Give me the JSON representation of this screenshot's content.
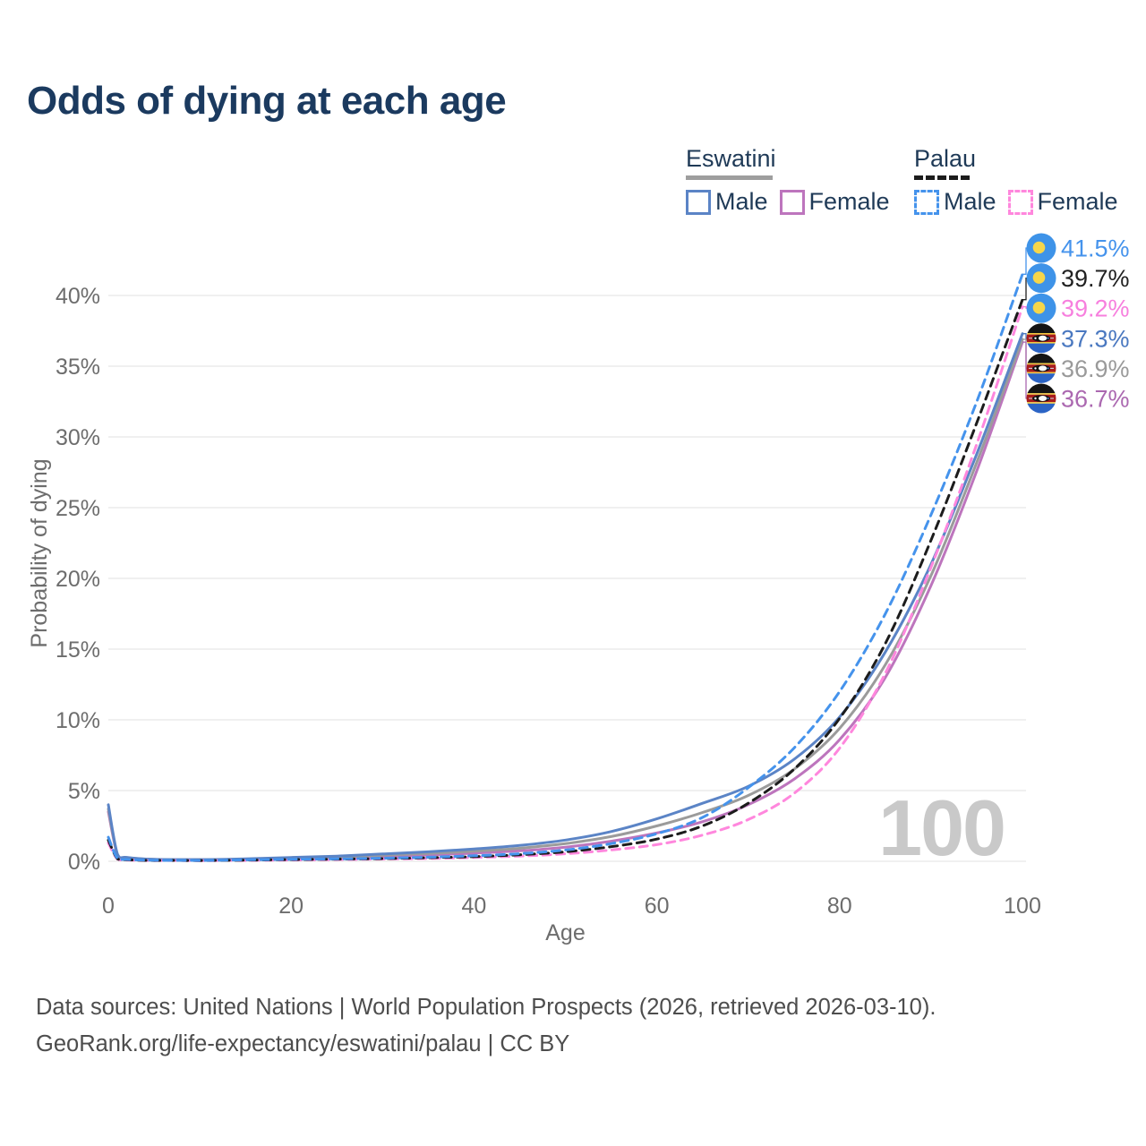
{
  "title": "Odds of dying at each age",
  "legend": {
    "groups": [
      {
        "name": "Eswatini",
        "style": "solid",
        "items": [
          {
            "label": "Male",
            "color": "#5b84c6"
          },
          {
            "label": "Female",
            "color": "#bd75bd"
          }
        ]
      },
      {
        "name": "Palau",
        "style": "dashed",
        "items": [
          {
            "label": "Male",
            "color": "#4593ec"
          },
          {
            "label": "Female",
            "color": "#ff87dd"
          }
        ]
      }
    ]
  },
  "chart_data": {
    "type": "line",
    "title": "Odds of dying at each age",
    "xlabel": "Age",
    "ylabel": "Probability of dying",
    "x_ticks": [
      0,
      20,
      40,
      60,
      80,
      100
    ],
    "y_tick_labels": [
      "0%",
      "5%",
      "10%",
      "15%",
      "20%",
      "25%",
      "30%",
      "35%",
      "40%"
    ],
    "y_tick_values": [
      0,
      5,
      10,
      15,
      20,
      25,
      30,
      35,
      40
    ],
    "xlim": [
      0,
      100
    ],
    "ylim": [
      0,
      43
    ],
    "grid": "horizontal",
    "watermark": "100",
    "ages": [
      0,
      1,
      2,
      5,
      10,
      15,
      20,
      25,
      30,
      35,
      40,
      45,
      50,
      55,
      60,
      65,
      70,
      75,
      80,
      85,
      90,
      95,
      100
    ],
    "series": [
      {
        "name": "Eswatini Female",
        "country": "Eswatini",
        "sex": "Female",
        "color": "#bd75bd",
        "dash": false,
        "end_value": 36.7,
        "values": [
          3.5,
          0.45,
          0.24,
          0.12,
          0.1,
          0.12,
          0.17,
          0.24,
          0.34,
          0.44,
          0.57,
          0.74,
          1.0,
          1.42,
          2.0,
          2.8,
          4.0,
          5.8,
          8.6,
          13.0,
          19.5,
          27.6,
          36.7
        ]
      },
      {
        "name": "Eswatini",
        "country": "Eswatini",
        "sex": "Both",
        "color": "#9b9b9b",
        "dash": false,
        "end_value": 36.9,
        "values": [
          3.7,
          0.48,
          0.26,
          0.13,
          0.11,
          0.14,
          0.22,
          0.3,
          0.43,
          0.55,
          0.71,
          0.92,
          1.25,
          1.75,
          2.5,
          3.45,
          4.65,
          6.5,
          9.4,
          13.9,
          20.2,
          28.2,
          36.9
        ]
      },
      {
        "name": "Eswatini Male",
        "country": "Eswatini",
        "sex": "Male",
        "color": "#5b84c6",
        "dash": false,
        "end_value": 37.3,
        "values": [
          4.0,
          0.5,
          0.28,
          0.14,
          0.12,
          0.17,
          0.27,
          0.37,
          0.52,
          0.67,
          0.87,
          1.12,
          1.5,
          2.1,
          3.0,
          4.1,
          5.3,
          7.2,
          10.2,
          14.8,
          21.0,
          28.8,
          37.3
        ]
      },
      {
        "name": "Palau Female",
        "country": "Palau",
        "sex": "Female",
        "color": "#ff87dd",
        "dash": true,
        "end_value": 39.2,
        "values": [
          1.3,
          0.15,
          0.09,
          0.05,
          0.04,
          0.06,
          0.09,
          0.12,
          0.16,
          0.2,
          0.27,
          0.37,
          0.53,
          0.8,
          1.18,
          1.85,
          2.95,
          4.8,
          8.0,
          13.3,
          20.8,
          29.5,
          39.2
        ]
      },
      {
        "name": "Palau",
        "country": "Palau",
        "sex": "Both",
        "color": "#1c1c1c",
        "dash": true,
        "end_value": 39.7,
        "values": [
          1.5,
          0.18,
          0.11,
          0.06,
          0.05,
          0.08,
          0.12,
          0.15,
          0.19,
          0.25,
          0.33,
          0.46,
          0.67,
          1.03,
          1.57,
          2.5,
          4.1,
          6.5,
          10.1,
          15.4,
          22.7,
          31.0,
          39.7
        ]
      },
      {
        "name": "Palau Male",
        "country": "Palau",
        "sex": "Male",
        "color": "#4593ec",
        "dash": true,
        "end_value": 41.5,
        "values": [
          1.7,
          0.2,
          0.13,
          0.07,
          0.06,
          0.1,
          0.14,
          0.17,
          0.22,
          0.29,
          0.39,
          0.54,
          0.8,
          1.25,
          1.95,
          3.1,
          5.2,
          8.0,
          12.0,
          17.5,
          24.5,
          32.5,
          41.5
        ]
      }
    ],
    "end_labels": [
      {
        "text": "41.5%",
        "value": 41.5,
        "color": "#4593ec",
        "flag": "palau",
        "series": "Palau Male"
      },
      {
        "text": "39.7%",
        "value": 39.7,
        "color": "#212121",
        "flag": "palau",
        "series": "Palau"
      },
      {
        "text": "39.2%",
        "value": 39.2,
        "color": "#f77fde",
        "flag": "palau",
        "series": "Palau Female"
      },
      {
        "text": "37.3%",
        "value": 37.3,
        "color": "#4a78c0",
        "flag": "eswatini",
        "series": "Eswatini Male"
      },
      {
        "text": "36.9%",
        "value": 36.9,
        "color": "#9a9a9a",
        "flag": "eswatini",
        "series": "Eswatini"
      },
      {
        "text": "36.7%",
        "value": 36.7,
        "color": "#ab68b0",
        "flag": "eswatini",
        "series": "Eswatini Female"
      }
    ]
  },
  "icons": {
    "palau_flag": "palau-flag-icon",
    "eswatini_flag": "eswatini-flag-icon"
  },
  "colors": {
    "title": "#1b3a5f",
    "axis_text": "#6d6d6d",
    "gridline": "#ececec",
    "watermark": "#c9c9c9",
    "footer": "#4d4d4d"
  },
  "footer": {
    "line1": "Data sources: United Nations | World Population Prospects (2026, retrieved 2026-03-10).",
    "line2": "GeoRank.org/life-expectancy/eswatini/palau | CC BY"
  }
}
